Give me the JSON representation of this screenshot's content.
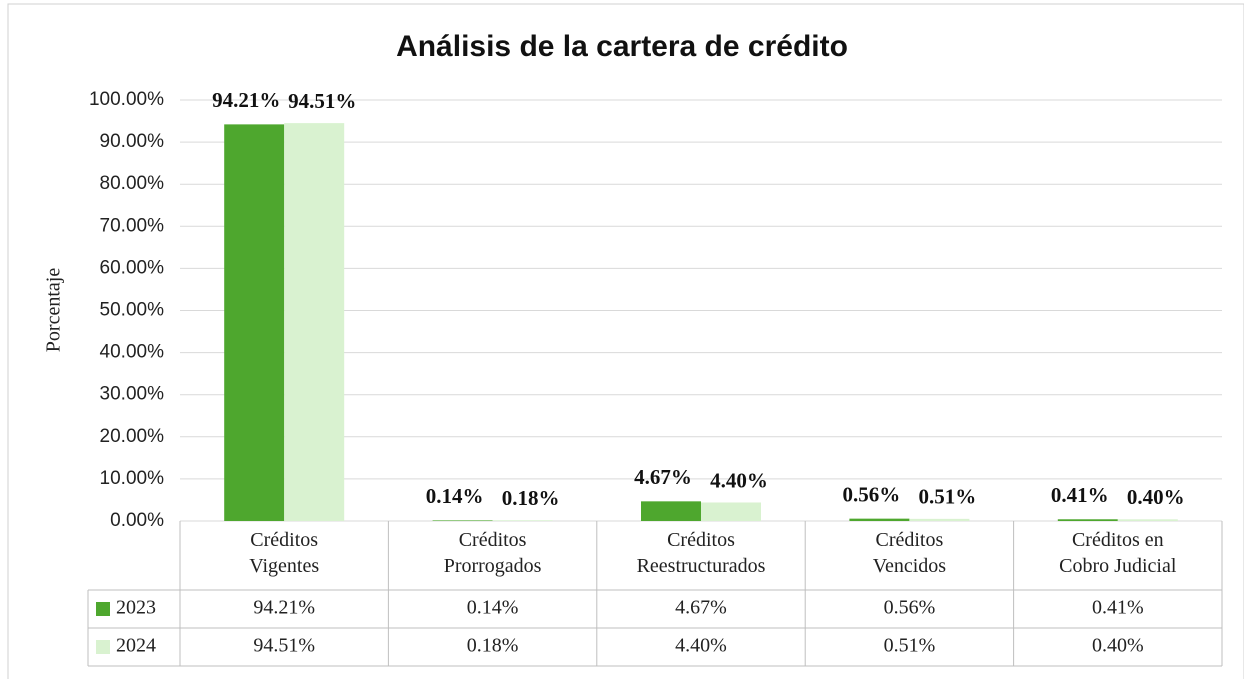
{
  "chart_data": {
    "type": "bar",
    "title": "Análisis de la cartera de crédito",
    "ylabel": "Porcentaje",
    "categories": [
      "Créditos\nVigentes",
      "Créditos\nProrrogados",
      "Créditos\nReestructurados",
      "Créditos\nVencidos",
      "Créditos en\nCobro Judicial"
    ],
    "series": [
      {
        "name": "2023",
        "color": "#4ea72e",
        "values": [
          94.21,
          0.14,
          4.67,
          0.56,
          0.41
        ],
        "value_labels": [
          "94.21%",
          "0.14%",
          "4.67%",
          "0.56%",
          "0.41%"
        ]
      },
      {
        "name": "2024",
        "color": "#d9f2d0",
        "values": [
          94.51,
          0.18,
          4.4,
          0.51,
          0.4
        ],
        "value_labels": [
          "94.51%",
          "0.18%",
          "4.40%",
          "0.51%",
          "0.40%"
        ]
      }
    ],
    "ylim": [
      0,
      100
    ],
    "yticks": [
      {
        "value": 0,
        "label": "0.00%"
      },
      {
        "value": 10,
        "label": "10.00%"
      },
      {
        "value": 20,
        "label": "20.00%"
      },
      {
        "value": 30,
        "label": "30.00%"
      },
      {
        "value": 40,
        "label": "40.00%"
      },
      {
        "value": 50,
        "label": "50.00%"
      },
      {
        "value": 60,
        "label": "60.00%"
      },
      {
        "value": 70,
        "label": "70.00%"
      },
      {
        "value": 80,
        "label": "80.00%"
      },
      {
        "value": 90,
        "label": "90.00%"
      },
      {
        "value": 100,
        "label": "100.00%"
      }
    ],
    "grid": true
  }
}
